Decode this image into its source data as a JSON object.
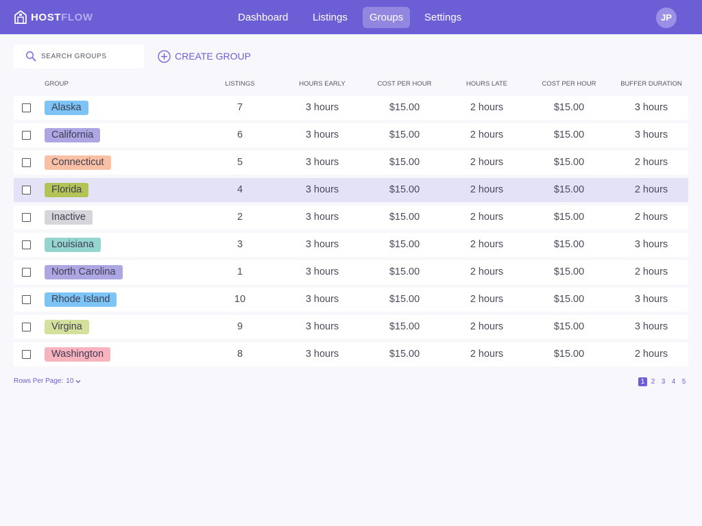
{
  "app": {
    "logo_host": "HOST",
    "logo_flow": "FLOW",
    "nav": [
      {
        "label": "Dashboard",
        "active": false
      },
      {
        "label": "Listings",
        "active": false
      },
      {
        "label": "Groups",
        "active": true
      },
      {
        "label": "Settings",
        "active": false
      }
    ],
    "avatar_initials": "JP"
  },
  "toolbar": {
    "search_placeholder": "SEARCH GROUPS",
    "create_label": "CREATE GROUP"
  },
  "table": {
    "headers": [
      "GROUP",
      "LISTINGS",
      "HOURS EARLY",
      "COST PER HOUR",
      "HOURS LATE",
      "COST PER HOUR",
      "BUFFER DURATION"
    ],
    "rows": [
      {
        "group": "Alaska",
        "color": "#7cc4f6",
        "listings": "7",
        "hours_early": "3 hours",
        "cost_early": "$15.00",
        "hours_late": "2 hours",
        "cost_late": "$15.00",
        "buffer": "3 hours",
        "highlighted": false
      },
      {
        "group": "California",
        "color": "#aca6e3",
        "listings": "6",
        "hours_early": "3 hours",
        "cost_early": "$15.00",
        "hours_late": "2 hours",
        "cost_late": "$15.00",
        "buffer": "3 hours",
        "highlighted": false
      },
      {
        "group": "Connecticut",
        "color": "#f9c0a5",
        "listings": "5",
        "hours_early": "3 hours",
        "cost_early": "$15.00",
        "hours_late": "2 hours",
        "cost_late": "$15.00",
        "buffer": "2 hours",
        "highlighted": false
      },
      {
        "group": "Florida",
        "color": "#b4c355",
        "listings": "4",
        "hours_early": "3 hours",
        "cost_early": "$15.00",
        "hours_late": "2 hours",
        "cost_late": "$15.00",
        "buffer": "2 hours",
        "highlighted": true
      },
      {
        "group": "Inactive",
        "color": "#d6d6da",
        "listings": "2",
        "hours_early": "3 hours",
        "cost_early": "$15.00",
        "hours_late": "2 hours",
        "cost_late": "$15.00",
        "buffer": "2 hours",
        "highlighted": false
      },
      {
        "group": "Louisiana",
        "color": "#94d5cf",
        "listings": "3",
        "hours_early": "3 hours",
        "cost_early": "$15.00",
        "hours_late": "2 hours",
        "cost_late": "$15.00",
        "buffer": "3 hours",
        "highlighted": false
      },
      {
        "group": "North Carolina",
        "color": "#aca6e3",
        "listings": "1",
        "hours_early": "3 hours",
        "cost_early": "$15.00",
        "hours_late": "2 hours",
        "cost_late": "$15.00",
        "buffer": "2 hours",
        "highlighted": false
      },
      {
        "group": "Rhode Island",
        "color": "#7cc4f6",
        "listings": "10",
        "hours_early": "3 hours",
        "cost_early": "$15.00",
        "hours_late": "2 hours",
        "cost_late": "$15.00",
        "buffer": "3 hours",
        "highlighted": false
      },
      {
        "group": "Virgina",
        "color": "#d4e19d",
        "listings": "9",
        "hours_early": "3 hours",
        "cost_early": "$15.00",
        "hours_late": "2 hours",
        "cost_late": "$15.00",
        "buffer": "3 hours",
        "highlighted": false
      },
      {
        "group": "Washington",
        "color": "#f8b3be",
        "listings": "8",
        "hours_early": "3 hours",
        "cost_early": "$15.00",
        "hours_late": "2 hours",
        "cost_late": "$15.00",
        "buffer": "2 hours",
        "highlighted": false
      }
    ]
  },
  "footer": {
    "rows_per_page_label": "Rows Per Page:",
    "rows_per_page_value": "10",
    "pages": [
      "1",
      "2",
      "3",
      "4",
      "5"
    ],
    "current_page": "1"
  },
  "colors": {
    "accent": "#6c5fd6",
    "row_highlight": "#e4e2f7",
    "background": "#f7f7fc"
  },
  "icons": {
    "logo": "house-logo-icon",
    "search": "search-icon",
    "create": "plus-circle-icon",
    "rows_per_page": "chevron-down-icon"
  }
}
